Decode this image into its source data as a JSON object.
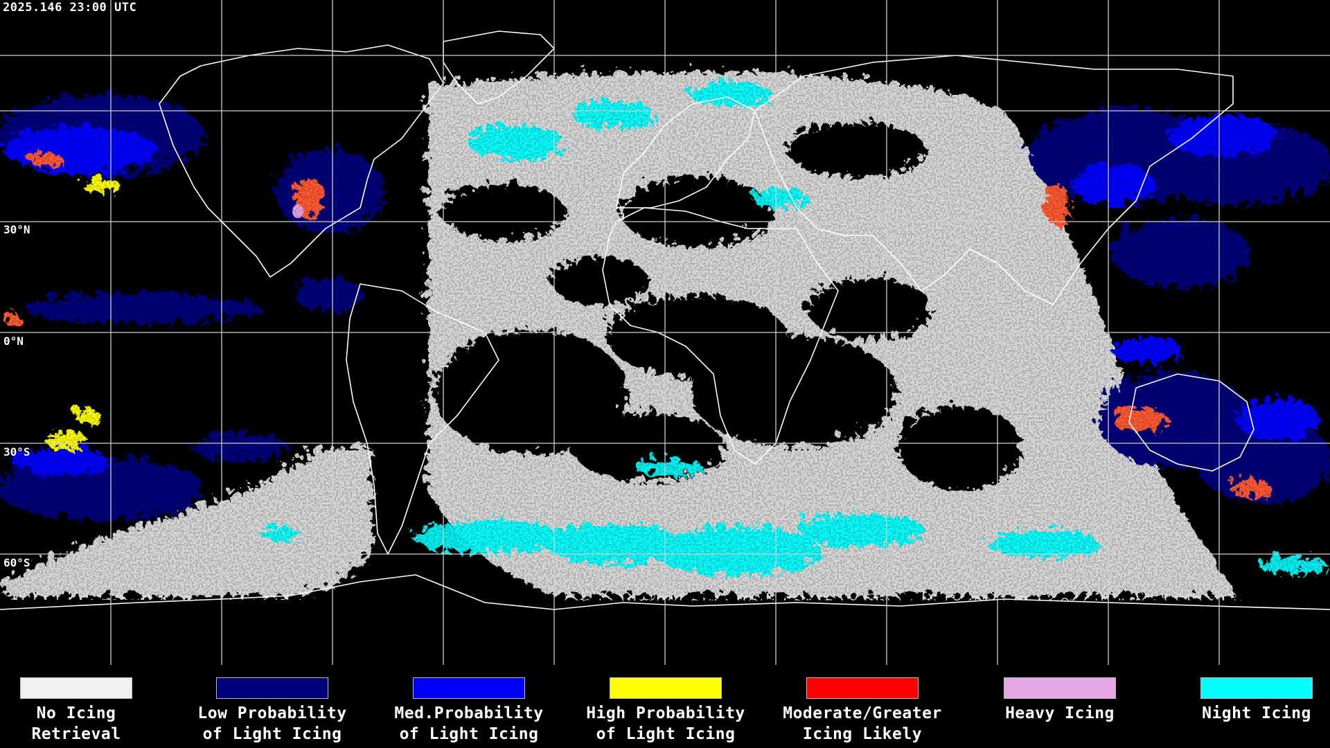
{
  "timestamp": "2025.146 23:00 UTC",
  "lat_labels": [
    "30°N",
    "0°N",
    "30°S",
    "60°S"
  ],
  "colors": {
    "background": "#000000",
    "no_icing": "#f0f0f0",
    "low_light": "#00007a",
    "med_light": "#0000ff",
    "high_light": "#ffff00",
    "moderate": "#ff0000",
    "heavy": "#e6a6e6",
    "night": "#00ffff"
  },
  "legend": [
    {
      "label": "No Icing\nRetrieval",
      "color": "#f0f0f0"
    },
    {
      "label": "Low Probability\nof Light Icing",
      "color": "#00007a"
    },
    {
      "label": "Med.Probability\nof Light Icing",
      "color": "#0000ff"
    },
    {
      "label": "High Probability\nof Light Icing",
      "color": "#ffff00"
    },
    {
      "label": "Moderate/Greater\nIcing Likely",
      "color": "#ff0000"
    },
    {
      "label": "Heavy Icing",
      "color": "#e6a6e6"
    },
    {
      "label": "Night Icing",
      "color": "#00ffff"
    }
  ]
}
